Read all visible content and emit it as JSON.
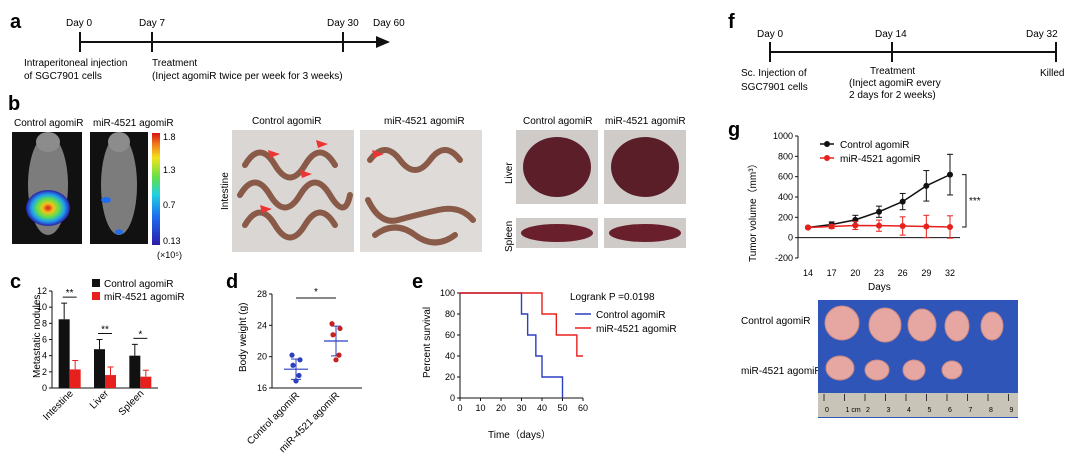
{
  "panels": {
    "a": {
      "letter": "a",
      "days": [
        "Day 0",
        "Day 7",
        "Day 30",
        "Day 60"
      ],
      "injection_line1": "Intraperitoneal injection",
      "injection_line2": "of  SGC7901 cells",
      "treatment_line1": "Treatment",
      "treatment_line2": "(Inject agomiR twice per week for 3 weeks)"
    },
    "b": {
      "letter": "b",
      "bio_labels": [
        "Control agomiR",
        "miR-4521 agomiR"
      ],
      "colorbar_ticks": [
        "1.8",
        "1.3",
        "0.7",
        "0.13"
      ],
      "colorbar_unit": "(×10⁵)",
      "intestine_labels": [
        "Control agomiR",
        "miR-4521 agomiR"
      ],
      "intestine_side": "Intestine",
      "organ_labels": [
        "Control agomiR",
        "miR-4521 agomiR"
      ],
      "liver_side": "Liver",
      "spleen_side": "Spleen"
    },
    "c": {
      "letter": "c",
      "ylabel": "Metastatic nodules",
      "legend": [
        "Control agomiR",
        "miR-4521 agomiR"
      ],
      "sig": [
        "**",
        "**",
        "*"
      ]
    },
    "d": {
      "letter": "d",
      "ylabel": "Body weight (g)",
      "sig": "*"
    },
    "e": {
      "letter": "e",
      "ylabel": "Percent survival",
      "xlabel": "Time（days）",
      "logrank": "Logrank P =0.0198",
      "legend": [
        "Control agomiR",
        "miR-4521 agomiR"
      ]
    },
    "f": {
      "letter": "f",
      "days": [
        "Day 0",
        "Day 14",
        "Day 32"
      ],
      "injection_line1": "Sc. Injection of",
      "injection_line2": "SGC7901 cells",
      "treatment_line1": "Treatment",
      "treatment_line2": "(Inject agomiR every",
      "treatment_line3": "2 days for 2 weeks)",
      "killed": "Killed"
    },
    "g": {
      "letter": "g",
      "ylabel": "Tumor volume（mm³）",
      "xlabel": "Days",
      "legend": [
        "Control agomiR",
        "miR-4521 agomiR"
      ],
      "sig": "***",
      "photo_labels": [
        "Control agomiR",
        "miR-4521 agomiR"
      ],
      "ruler_labels": [
        "0",
        "1 cm",
        "2",
        "3",
        "4",
        "5",
        "6",
        "7",
        "8",
        "9"
      ]
    }
  },
  "colors": {
    "control": "#111111",
    "mir": "#e8201d",
    "e_control": "#2b3fbf",
    "e_mir": "#e8201d"
  },
  "chart_data": [
    {
      "id": "c",
      "type": "bar",
      "categories": [
        "Intestine",
        "Liver",
        "Spleen"
      ],
      "series": [
        {
          "name": "Control agomiR",
          "values": [
            8.5,
            4.8,
            4.0
          ],
          "errors": [
            2.0,
            1.2,
            1.4
          ]
        },
        {
          "name": "miR-4521 agomiR",
          "values": [
            2.3,
            1.6,
            1.4
          ],
          "errors": [
            1.1,
            1.0,
            0.8
          ]
        }
      ],
      "ylim": [
        0,
        12
      ],
      "yticks": [
        0,
        2,
        4,
        6,
        8,
        10,
        12
      ],
      "ylabel": "Metastatic nodules"
    },
    {
      "id": "d",
      "type": "scatter",
      "categories": [
        "Control agomiR",
        "miR-4521 agomiR"
      ],
      "series": [
        {
          "name": "Control agomiR",
          "values": [
            20.2,
            19.6,
            18.9,
            17.6,
            16.9
          ],
          "mean": 18.4,
          "sd": 1.3
        },
        {
          "name": "miR-4521 agomiR",
          "values": [
            24.2,
            23.6,
            22.8,
            20.2,
            19.6
          ],
          "mean": 22.0,
          "sd": 1.9
        }
      ],
      "ylim": [
        16,
        28
      ],
      "yticks": [
        16,
        20,
        24,
        28
      ],
      "ylabel": "Body weight (g)"
    },
    {
      "id": "e",
      "type": "line",
      "step": true,
      "series": [
        {
          "name": "Control agomiR",
          "x": [
            0,
            30,
            30,
            33,
            33,
            37,
            37,
            40,
            40,
            50,
            50
          ],
          "y": [
            100,
            100,
            80,
            80,
            60,
            60,
            40,
            40,
            20,
            20,
            0
          ]
        },
        {
          "name": "miR-4521 agomiR",
          "x": [
            0,
            40,
            40,
            47,
            47,
            50,
            50,
            57,
            57,
            60
          ],
          "y": [
            100,
            100,
            80,
            80,
            60,
            60,
            60,
            60,
            40,
            40
          ]
        }
      ],
      "xlim": [
        0,
        60
      ],
      "ylim": [
        0,
        100
      ],
      "xticks": [
        0,
        10,
        20,
        30,
        40,
        50,
        60
      ],
      "yticks": [
        0,
        20,
        40,
        60,
        80,
        100
      ],
      "xlabel": "Time（days）",
      "ylabel": "Percent survival"
    },
    {
      "id": "g",
      "type": "line",
      "x": [
        14,
        17,
        20,
        23,
        26,
        29,
        32
      ],
      "series": [
        {
          "name": "Control agomiR",
          "values": [
            100,
            130,
            175,
            255,
            355,
            510,
            620
          ],
          "errors": [
            10,
            25,
            45,
            55,
            80,
            150,
            200
          ]
        },
        {
          "name": "miR-4521 agomiR",
          "values": [
            100,
            110,
            120,
            118,
            115,
            110,
            105
          ],
          "errors": [
            10,
            20,
            40,
            55,
            90,
            110,
            110
          ]
        }
      ],
      "ylim": [
        -200,
        1000
      ],
      "yticks": [
        -200,
        0,
        200,
        400,
        600,
        800,
        1000
      ],
      "xlabel": "Days",
      "ylabel": "Tumor volume（mm³）"
    }
  ]
}
